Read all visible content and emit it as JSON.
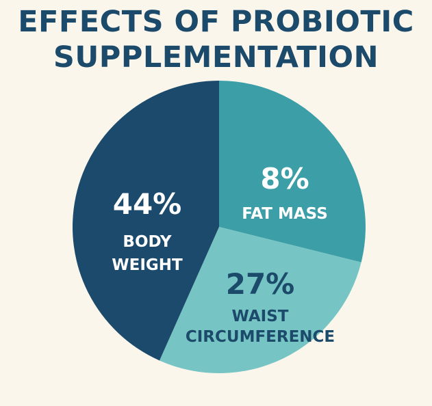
{
  "chart_data": {
    "type": "pie",
    "title_lines": [
      "EFFECTS OF PROBIOTIC",
      "SUPPLEMENTATION"
    ],
    "slices": [
      {
        "value_label": "8%",
        "label_lines": [
          "FAT MASS"
        ],
        "value": 8,
        "color": "#3c9ea6",
        "text_color": "#ffffff"
      },
      {
        "value_label": "27%",
        "label_lines": [
          "WAIST",
          "CIRCUMFERENCE"
        ],
        "value": 27,
        "color": "#76c5c4",
        "text_color": "#1c4a6b"
      },
      {
        "value_label": "44%",
        "label_lines": [
          "BODY",
          "WEIGHT"
        ],
        "value": 44,
        "color": "#1b4a6c",
        "text_color": "#ffffff"
      }
    ],
    "visual_angles_deg": [
      {
        "start": 0,
        "end": 104
      },
      {
        "start": 104,
        "end": 204
      },
      {
        "start": 204,
        "end": 360
      }
    ]
  }
}
